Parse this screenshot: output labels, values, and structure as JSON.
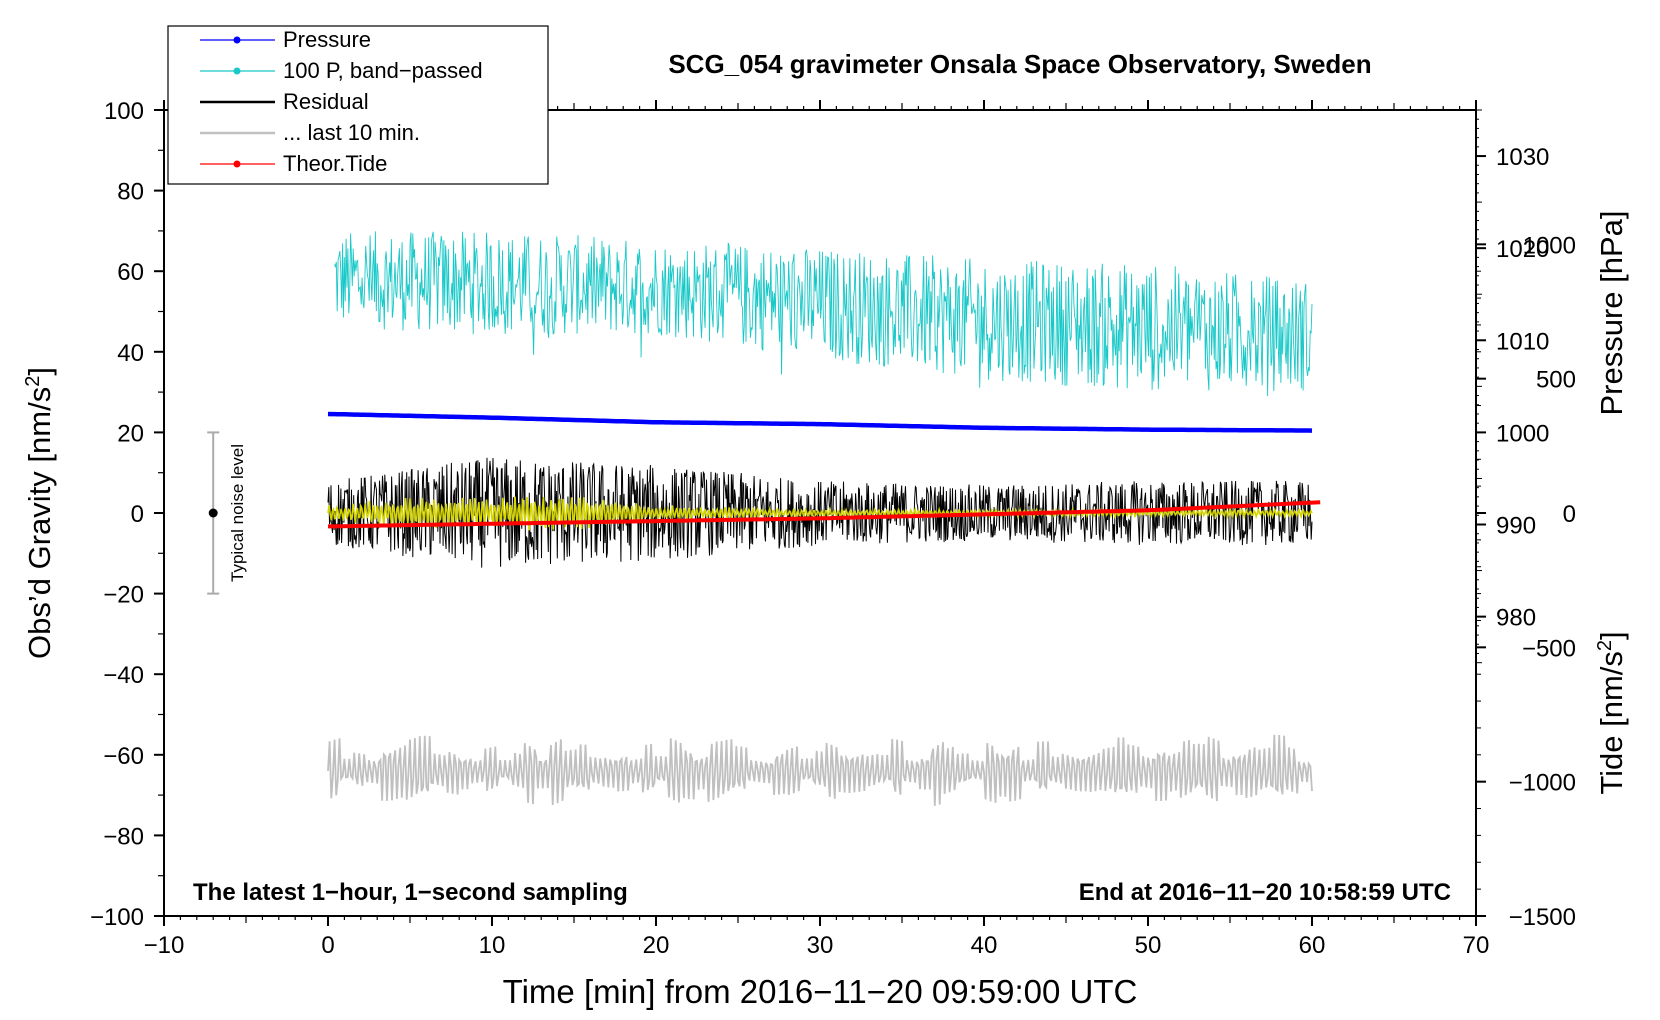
{
  "chart_data": {
    "type": "line",
    "title": "SCG_054 gravimeter Onsala Space Observatory, Sweden",
    "xlabel": "Time [min] from 2016−11−20 09:59:00 UTC",
    "ylabel_left": "Obs’d Gravity [nm/s",
    "ylabel_left_sup": "2",
    "ylabel_left_end": "]",
    "ylabel_pressure": "Pressure [hPa]",
    "ylabel_tide": "Tide [nm/s",
    "ylabel_tide_sup": "2",
    "ylabel_tide_end": "]",
    "xlim": [
      -10,
      70
    ],
    "ylim": [
      -100,
      100
    ],
    "pressure_lim": [
      947.5,
      1035
    ],
    "tide_lim": [
      -1500,
      1500
    ],
    "x_ticks": [
      -10,
      0,
      10,
      20,
      30,
      40,
      50,
      60,
      70
    ],
    "x_tick_labels": [
      "−10",
      "0",
      "10",
      "20",
      "30",
      "40",
      "50",
      "60",
      "70"
    ],
    "y_ticks": [
      -100,
      -80,
      -60,
      -40,
      -20,
      0,
      20,
      40,
      60,
      80,
      100
    ],
    "y_tick_labels": [
      "−100",
      "−80",
      "−60",
      "−40",
      "−20",
      "0",
      "20",
      "40",
      "60",
      "80",
      "100"
    ],
    "pressure_ticks": [
      980,
      990,
      1000,
      1010,
      1020,
      1030
    ],
    "pressure_tick_labels": [
      "980",
      "990",
      "1000",
      "1010",
      "1020",
      "1030"
    ],
    "tide_ticks": [
      -1500,
      -1000,
      -500,
      0,
      500,
      1000
    ],
    "tide_tick_labels": [
      "−1500",
      "−1000",
      "−500",
      "0",
      "500",
      "1000"
    ],
    "legend": {
      "position": "top-left",
      "entries": [
        {
          "label": "Pressure",
          "color": "#0000ff",
          "marker": true
        },
        {
          "label": "100 P, band−passed",
          "color": "#19c8c8",
          "marker": true
        },
        {
          "label": "Residual",
          "color": "#000000",
          "marker": false
        },
        {
          "label": "... last 10 min.",
          "color": "#c0c0c0",
          "marker": false
        },
        {
          "label": "Theor.Tide",
          "color": "#ff0000",
          "marker": true
        }
      ]
    },
    "series": [
      {
        "name": "Pressure",
        "axis": "pressure",
        "color": "#0000ff",
        "x": [
          0,
          10,
          20,
          30,
          40,
          50,
          60
        ],
        "values": [
          1002.0,
          1001.6,
          1001.1,
          1000.9,
          1000.5,
          1000.3,
          1000.2
        ]
      },
      {
        "name": "100 P, band−passed",
        "axis": "gravity",
        "color": "#19c8c8",
        "x": [
          0,
          10,
          20,
          30,
          40,
          50,
          60
        ],
        "center": [
          58,
          57,
          56,
          52,
          48,
          46,
          44
        ],
        "amplitude": [
          12,
          13,
          12,
          14,
          15,
          16,
          14
        ]
      },
      {
        "name": "Residual",
        "axis": "gravity",
        "color": "#000000",
        "x": [
          0,
          10,
          20,
          30,
          40,
          50,
          60
        ],
        "center": [
          0,
          0,
          0,
          0,
          0,
          0,
          0
        ],
        "amplitude": [
          8,
          14,
          12,
          8,
          7,
          8,
          8
        ]
      },
      {
        "name": "Residual (smoothed)",
        "axis": "gravity",
        "color": "#d4d400",
        "x": [
          0,
          5,
          10,
          15,
          20,
          30,
          40,
          50,
          60
        ],
        "center": [
          0,
          0,
          0,
          0,
          0,
          0,
          0,
          0,
          0
        ],
        "amplitude": [
          2,
          4,
          4,
          5,
          2,
          1,
          1,
          1,
          1
        ]
      },
      {
        "name": "... last 10 min.",
        "axis": "gravity",
        "color": "#c0c0c0",
        "x": [
          0,
          60
        ],
        "center": [
          -64,
          -64
        ],
        "amplitude": [
          7,
          7
        ]
      },
      {
        "name": "Theor.Tide",
        "axis": "tide",
        "color": "#ff0000",
        "x": [
          0,
          10,
          20,
          30,
          40,
          50,
          60.5
        ],
        "values": [
          -50,
          -40,
          -30,
          -20,
          -5,
          10,
          40
        ]
      }
    ],
    "annotations": {
      "noise_label": "Typical noise level",
      "noise_range": [
        -20,
        20
      ],
      "noise_x": -7,
      "bottom_left": "The latest 1−hour, 1−second sampling",
      "bottom_right": "End at 2016−11−20 10:58:59 UTC"
    },
    "grid": false
  }
}
